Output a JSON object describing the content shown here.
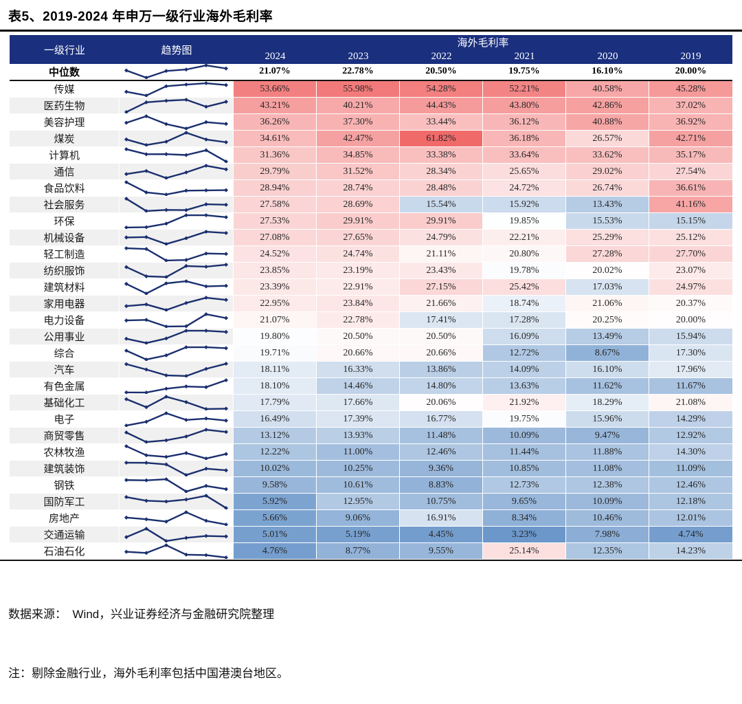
{
  "title": "表5、2019-2024 年申万一级行业海外毛利率",
  "table": {
    "col_industry": "一级行业",
    "col_trend": "趋势图",
    "banner": "海外毛利率",
    "years": [
      "2024",
      "2023",
      "2022",
      "2021",
      "2020",
      "2019"
    ],
    "median_label": "中位数",
    "median_values": [
      21.07,
      22.78,
      20.5,
      19.75,
      16.1,
      20.0
    ],
    "rows": [
      {
        "industry": "传媒",
        "values": [
          53.66,
          55.98,
          54.28,
          52.21,
          40.58,
          45.28
        ]
      },
      {
        "industry": "医药生物",
        "values": [
          43.21,
          40.21,
          44.43,
          43.8,
          42.86,
          37.02
        ]
      },
      {
        "industry": "美容护理",
        "values": [
          36.26,
          37.3,
          33.44,
          36.12,
          40.88,
          36.92
        ]
      },
      {
        "industry": "煤炭",
        "values": [
          34.61,
          42.47,
          61.82,
          36.18,
          26.57,
          42.71
        ]
      },
      {
        "industry": "计算机",
        "values": [
          31.36,
          34.85,
          33.38,
          33.64,
          33.62,
          35.17
        ]
      },
      {
        "industry": "通信",
        "values": [
          29.79,
          31.52,
          28.34,
          25.65,
          29.02,
          27.54
        ]
      },
      {
        "industry": "食品饮料",
        "values": [
          28.94,
          28.74,
          28.48,
          24.72,
          26.74,
          36.61
        ]
      },
      {
        "industry": "社会服务",
        "values": [
          27.58,
          28.69,
          15.54,
          15.92,
          13.43,
          41.16
        ]
      },
      {
        "industry": "环保",
        "values": [
          27.53,
          29.91,
          29.91,
          19.85,
          15.53,
          15.15
        ]
      },
      {
        "industry": "机械设备",
        "values": [
          27.08,
          27.65,
          24.79,
          22.21,
          25.29,
          25.12
        ]
      },
      {
        "industry": "轻工制造",
        "values": [
          24.52,
          24.74,
          21.11,
          20.8,
          27.28,
          27.7
        ]
      },
      {
        "industry": "纺织服饰",
        "values": [
          23.85,
          23.19,
          23.43,
          19.78,
          20.02,
          23.07
        ]
      },
      {
        "industry": "建筑材料",
        "values": [
          23.39,
          22.91,
          27.15,
          25.42,
          17.03,
          24.97
        ]
      },
      {
        "industry": "家用电器",
        "values": [
          22.95,
          23.84,
          21.66,
          18.74,
          21.06,
          20.37
        ]
      },
      {
        "industry": "电力设备",
        "values": [
          21.07,
          22.78,
          17.41,
          17.28,
          20.25,
          20.0
        ]
      },
      {
        "industry": "公用事业",
        "values": [
          19.8,
          20.5,
          20.5,
          16.09,
          13.49,
          15.94
        ]
      },
      {
        "industry": "综合",
        "values": [
          19.71,
          20.66,
          20.66,
          12.72,
          8.67,
          17.3
        ]
      },
      {
        "industry": "汽车",
        "values": [
          18.11,
          16.33,
          13.86,
          14.09,
          16.1,
          17.96
        ]
      },
      {
        "industry": "有色金属",
        "values": [
          18.1,
          14.46,
          14.8,
          13.63,
          11.62,
          11.67
        ]
      },
      {
        "industry": "基础化工",
        "values": [
          17.79,
          17.66,
          20.06,
          21.92,
          18.29,
          21.08
        ]
      },
      {
        "industry": "电子",
        "values": [
          16.49,
          17.39,
          16.77,
          19.75,
          15.96,
          14.29
        ]
      },
      {
        "industry": "商贸零售",
        "values": [
          13.12,
          13.93,
          11.48,
          10.09,
          9.47,
          12.92
        ]
      },
      {
        "industry": "农林牧渔",
        "values": [
          12.22,
          11.0,
          12.46,
          11.44,
          11.88,
          14.3
        ]
      },
      {
        "industry": "建筑装饰",
        "values": [
          10.02,
          10.25,
          9.36,
          10.85,
          11.08,
          11.09
        ]
      },
      {
        "industry": "钢铁",
        "values": [
          9.58,
          10.61,
          8.83,
          12.73,
          12.38,
          12.46
        ]
      },
      {
        "industry": "国防军工",
        "values": [
          5.92,
          12.95,
          10.75,
          9.65,
          10.09,
          12.18
        ]
      },
      {
        "industry": "房地产",
        "values": [
          5.66,
          9.06,
          16.91,
          8.34,
          10.46,
          12.01
        ]
      },
      {
        "industry": "交通运输",
        "values": [
          5.01,
          5.19,
          4.45,
          3.23,
          7.98,
          4.74
        ]
      },
      {
        "industry": "石油石化",
        "values": [
          4.76,
          8.77,
          9.55,
          25.14,
          12.35,
          14.23
        ]
      }
    ]
  },
  "colors": {
    "header_bg": "#1a2f7e",
    "header_text": "#ffffff",
    "spark_line": "#1a2f6e",
    "heat_red": "#f16a6a",
    "heat_blue": "#6b97ca",
    "row_alt_bg": "#f0f0f0",
    "text": "#262626"
  },
  "heat_scale": {
    "min": 3.23,
    "mid": 19.9,
    "max": 61.82
  },
  "footer": {
    "source": "数据来源：　Wind，兴业证券经济与金融研究院整理",
    "note": "注：剔除金融行业，海外毛利率包括中国港澳台地区。"
  }
}
